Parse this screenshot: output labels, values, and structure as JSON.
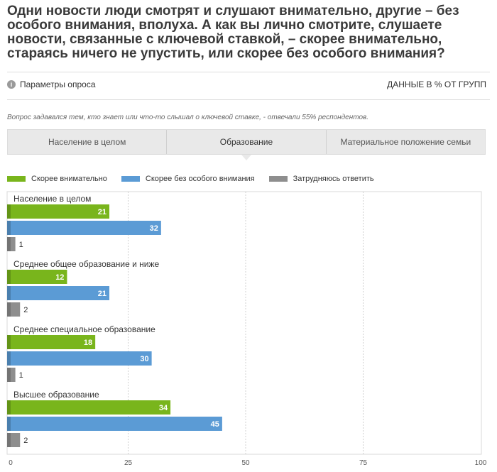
{
  "title": "Одни новости люди смотрят и слушают внимательно, другие – без особого внимания, вполуха. А как вы лично смотрите, слушаете новости, связанные с ключевой ставкой, – скорее внимательно, стараясь ничего не упустить, или скорее без особого внимания?",
  "params_label": "Параметры опроса",
  "units_label": "ДАННЫЕ В % ОТ ГРУПП",
  "note": "Вопрос задавался тем, кто знает или что-то слышал о ключевой ставке, - отвечали 55% респондентов.",
  "tabs": [
    {
      "label": "Население в целом"
    },
    {
      "label": "Образование"
    },
    {
      "label": "Материальное положение семьи"
    }
  ],
  "colors": {
    "green": "#79b51c",
    "blue": "#5b9bd5",
    "gray": "#8e8e8e"
  },
  "chart_data": {
    "type": "bar",
    "orientation": "horizontal",
    "categories": [
      "Население в целом",
      "Среднее общее образование и ниже",
      "Среднее специальное образование",
      "Высшее образование"
    ],
    "series": [
      {
        "name": "Скорее внимательно",
        "color": "#79b51c",
        "values": [
          21,
          12,
          18,
          34
        ]
      },
      {
        "name": "Скорее без особого внимания",
        "color": "#5b9bd5",
        "values": [
          32,
          21,
          30,
          45
        ]
      },
      {
        "name": "Затрудняюсь ответить",
        "color": "#8e8e8e",
        "values": [
          1,
          2,
          1,
          2
        ]
      }
    ],
    "xlim": [
      0,
      100
    ],
    "xticks": [
      0,
      25,
      50,
      75,
      100
    ],
    "grid": true,
    "legend_position": "top-left"
  }
}
